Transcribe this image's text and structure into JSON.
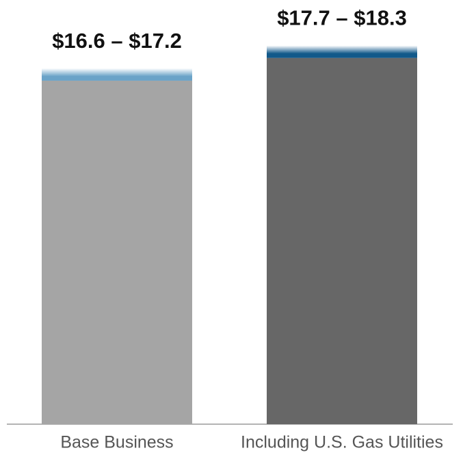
{
  "chart_data": {
    "type": "bar",
    "categories": [
      "Base Business",
      "Including U.S. Gas Utilities"
    ],
    "low": [
      16.6,
      17.7
    ],
    "high": [
      17.2,
      18.3
    ],
    "value_labels": [
      "$16.6 – $17.2",
      "$17.7 – $18.3"
    ],
    "colors": [
      "#a5a5a5",
      "#676767"
    ],
    "band_colors": [
      "#6aa3c8",
      "#12598a"
    ],
    "ylim": [
      0,
      20.5
    ]
  }
}
